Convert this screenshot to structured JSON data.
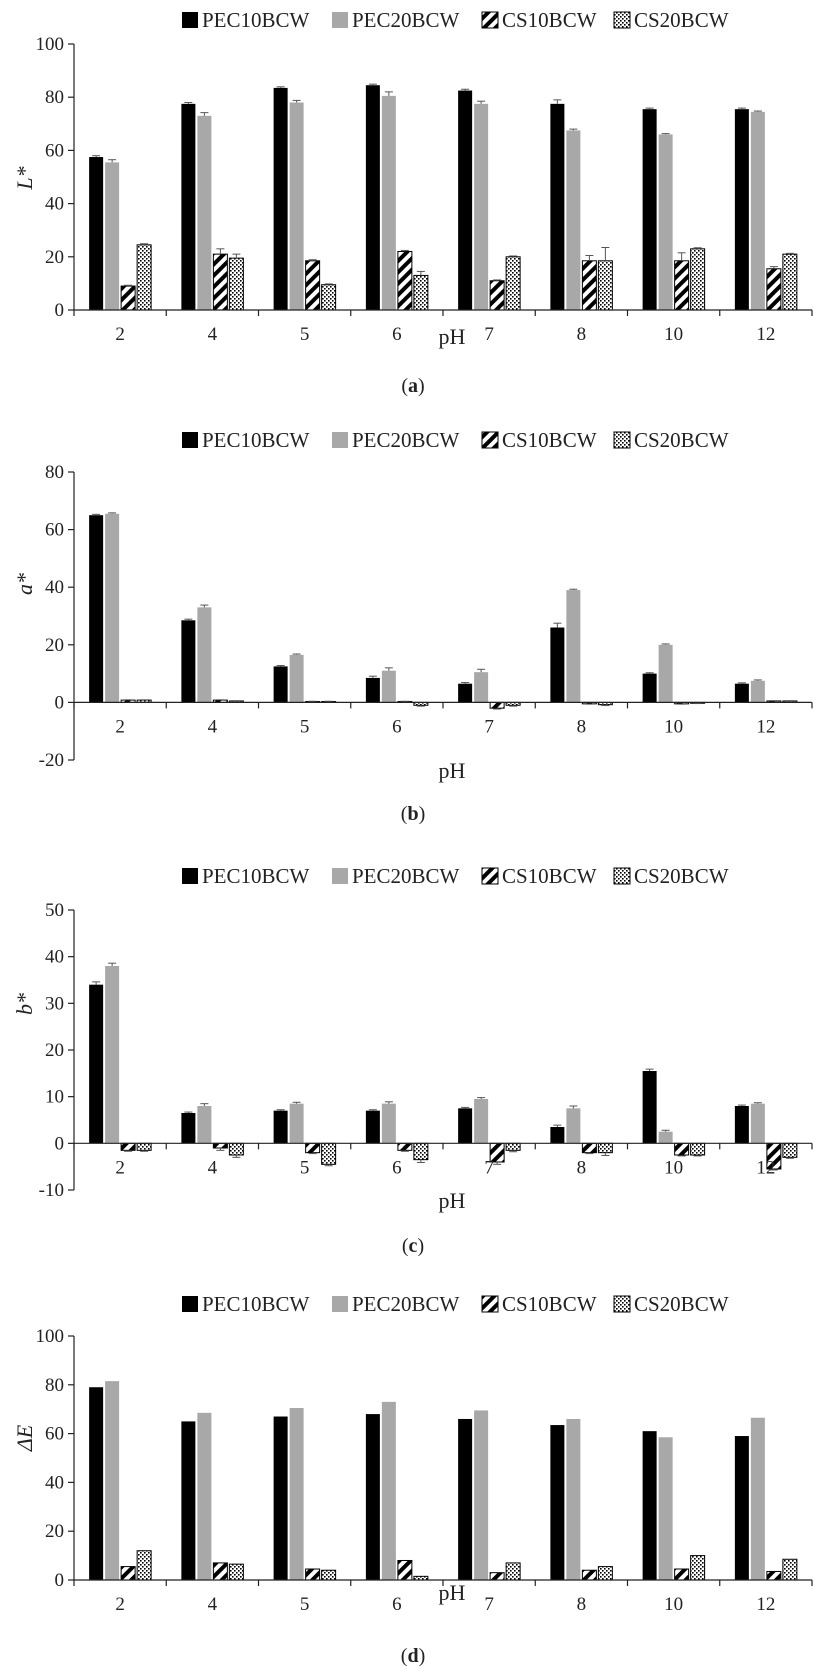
{
  "figure": {
    "panels": [
      "a",
      "b",
      "c",
      "d"
    ]
  },
  "series_style": [
    {
      "name": "PEC10BCW",
      "fill": "#000000",
      "pattern": "solid"
    },
    {
      "name": "PEC20BCW",
      "fill": "#a8a8a8",
      "pattern": "solid"
    },
    {
      "name": "CS10BCW",
      "fill": "#ffffff",
      "pattern": "diagonal-hatch"
    },
    {
      "name": "CS20BCW",
      "fill": "#ffffff",
      "pattern": "dots"
    }
  ],
  "chart_data": [
    {
      "type": "bar",
      "panel": "a",
      "caption_open": "(",
      "caption_letter": "a",
      "caption_close": ")",
      "xlabel": "pH",
      "ylabel": "L*",
      "ylim": [
        0,
        100
      ],
      "yticks": [
        0,
        20,
        40,
        60,
        80,
        100
      ],
      "grid": false,
      "legend_position": "top",
      "categories": [
        "2",
        "4",
        "5",
        "6",
        "7",
        "8",
        "10",
        "12"
      ],
      "series": [
        {
          "name": "PEC10BCW",
          "values": [
            57.5,
            77.5,
            83.5,
            84.5,
            82.5,
            77.5,
            75.5,
            75.5
          ],
          "errors": [
            0.5,
            0.5,
            0.4,
            0.4,
            0.5,
            1.5,
            0.4,
            0.4
          ]
        },
        {
          "name": "PEC20BCW",
          "values": [
            55.5,
            73.0,
            78.0,
            80.5,
            77.5,
            67.5,
            66.0,
            74.5
          ],
          "errors": [
            1.0,
            1.2,
            0.8,
            1.5,
            1.0,
            0.5,
            0.3,
            0.3
          ]
        },
        {
          "name": "CS10BCW",
          "values": [
            9.0,
            21.0,
            18.5,
            22.0,
            11.0,
            18.5,
            18.5,
            15.5
          ],
          "errors": [
            0.3,
            2.0,
            0.4,
            0.4,
            0.3,
            2.0,
            3.0,
            0.8
          ]
        },
        {
          "name": "CS20BCW",
          "values": [
            24.5,
            19.5,
            9.5,
            13.0,
            20.0,
            18.5,
            23.0,
            21.0
          ],
          "errors": [
            0.4,
            1.5,
            0.3,
            1.5,
            0.3,
            5.0,
            0.4,
            0.3
          ]
        }
      ]
    },
    {
      "type": "bar",
      "panel": "b",
      "caption_open": "(",
      "caption_letter": "b",
      "caption_close": ")",
      "xlabel": "pH",
      "ylabel": "a*",
      "ylim": [
        -20,
        80
      ],
      "yticks": [
        -20,
        0,
        20,
        40,
        60,
        80
      ],
      "grid": false,
      "legend_position": "top",
      "categories": [
        "2",
        "4",
        "5",
        "6",
        "7",
        "8",
        "10",
        "12"
      ],
      "series": [
        {
          "name": "PEC10BCW",
          "values": [
            65.0,
            28.5,
            12.5,
            8.5,
            6.5,
            26.0,
            10.0,
            6.5
          ],
          "errors": [
            0.3,
            0.4,
            0.3,
            0.6,
            0.4,
            1.5,
            0.3,
            0.3
          ]
        },
        {
          "name": "PEC20BCW",
          "values": [
            65.5,
            33.0,
            16.5,
            11.0,
            10.5,
            39.0,
            20.0,
            7.5
          ],
          "errors": [
            0.3,
            0.8,
            0.3,
            1.0,
            1.0,
            0.3,
            0.3,
            0.3
          ]
        },
        {
          "name": "CS10BCW",
          "values": [
            0.8,
            0.8,
            0.3,
            0.3,
            -2.0,
            -0.5,
            -0.5,
            0.5
          ],
          "errors": [
            0.1,
            0.1,
            0.1,
            0.1,
            0.3,
            0.1,
            0.1,
            0.1
          ]
        },
        {
          "name": "CS20BCW",
          "values": [
            0.8,
            0.5,
            0.3,
            -1.0,
            -1.0,
            -0.8,
            -0.3,
            0.5
          ],
          "errors": [
            0.1,
            0.1,
            0.1,
            0.3,
            0.3,
            0.3,
            0.1,
            0.1
          ]
        }
      ]
    },
    {
      "type": "bar",
      "panel": "c",
      "caption_open": "(",
      "caption_letter": "c",
      "caption_close": ")",
      "xlabel": "pH",
      "ylabel": "b*",
      "ylim": [
        -10,
        50
      ],
      "yticks": [
        -10,
        0,
        10,
        20,
        30,
        40,
        50
      ],
      "grid": false,
      "legend_position": "top",
      "categories": [
        "2",
        "4",
        "5",
        "6",
        "7",
        "8",
        "10",
        "12"
      ],
      "series": [
        {
          "name": "PEC10BCW",
          "values": [
            34.0,
            6.5,
            7.0,
            7.0,
            7.5,
            3.5,
            15.5,
            8.0
          ],
          "errors": [
            0.6,
            0.2,
            0.2,
            0.2,
            0.2,
            0.4,
            0.4,
            0.2
          ]
        },
        {
          "name": "PEC20BCW",
          "values": [
            38.0,
            8.0,
            8.5,
            8.5,
            9.5,
            7.5,
            2.5,
            8.5
          ],
          "errors": [
            0.6,
            0.5,
            0.3,
            0.4,
            0.3,
            0.5,
            0.3,
            0.2
          ]
        },
        {
          "name": "CS10BCW",
          "values": [
            -1.5,
            -1.0,
            -2.0,
            -1.5,
            -4.0,
            -2.0,
            -2.5,
            -5.5
          ],
          "errors": [
            0.2,
            0.5,
            0.2,
            0.2,
            0.5,
            0.2,
            0.2,
            0.2
          ]
        },
        {
          "name": "CS20BCW",
          "values": [
            -1.5,
            -2.5,
            -4.5,
            -3.5,
            -1.5,
            -2.0,
            -2.5,
            -3.0
          ],
          "errors": [
            0.2,
            0.5,
            0.3,
            0.6,
            0.3,
            0.6,
            0.2,
            0.2
          ]
        }
      ]
    },
    {
      "type": "bar",
      "panel": "d",
      "caption_open": "(",
      "caption_letter": "d",
      "caption_close": ")",
      "xlabel": "pH",
      "ylabel": "ΔE",
      "ylim": [
        0,
        100
      ],
      "yticks": [
        0,
        20,
        40,
        60,
        80,
        100
      ],
      "grid": false,
      "legend_position": "top",
      "categories": [
        "2",
        "4",
        "5",
        "6",
        "7",
        "8",
        "10",
        "12"
      ],
      "series": [
        {
          "name": "PEC10BCW",
          "values": [
            79.0,
            65.0,
            67.0,
            68.0,
            66.0,
            63.5,
            61.0,
            59.0
          ],
          "errors": [
            0,
            0,
            0,
            0,
            0,
            0,
            0,
            0
          ]
        },
        {
          "name": "PEC20BCW",
          "values": [
            81.5,
            68.5,
            70.5,
            73.0,
            69.5,
            66.0,
            58.5,
            66.5
          ],
          "errors": [
            0,
            0,
            0,
            0,
            0,
            0,
            0,
            0
          ]
        },
        {
          "name": "CS10BCW",
          "values": [
            5.5,
            7.0,
            4.5,
            8.0,
            3.0,
            4.0,
            4.5,
            3.5
          ],
          "errors": [
            0,
            0,
            0,
            0,
            0,
            0,
            0,
            0
          ]
        },
        {
          "name": "CS20BCW",
          "values": [
            12.0,
            6.5,
            4.0,
            1.5,
            7.0,
            5.5,
            10.0,
            8.5
          ],
          "errors": [
            0,
            0,
            0,
            0,
            0,
            0,
            0,
            0
          ]
        }
      ]
    }
  ]
}
